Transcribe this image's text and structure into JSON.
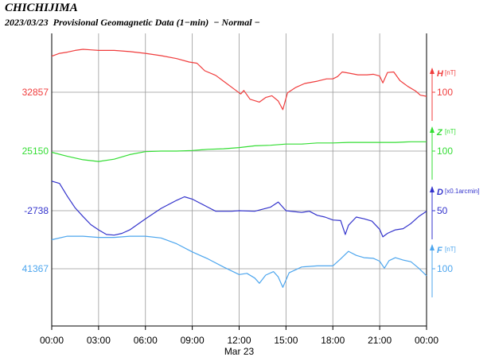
{
  "header": {
    "station": "CHICHIJIMA",
    "date": "2023/03/23",
    "description": "Provisional Geomagnetic Data (1−min)",
    "status": "− Normal −"
  },
  "chart_data": {
    "type": "line",
    "xlabel": "Mar 23",
    "x_ticks": [
      "00:00",
      "03:00",
      "06:00",
      "09:00",
      "12:00",
      "15:00",
      "18:00",
      "21:00",
      "00:00"
    ],
    "x_range_hours": [
      0,
      24
    ],
    "grid": true,
    "series": [
      {
        "name": "H",
        "unit": "[nT]",
        "color": "#f03c3c",
        "baseline_label": "32857",
        "scale_value": "100",
        "points": [
          [
            0,
            62
          ],
          [
            0.5,
            67
          ],
          [
            1,
            69
          ],
          [
            1.5,
            72
          ],
          [
            2,
            74
          ],
          [
            2.5,
            73
          ],
          [
            3,
            72
          ],
          [
            4,
            72
          ],
          [
            5,
            70
          ],
          [
            6,
            67
          ],
          [
            7,
            63
          ],
          [
            8,
            58
          ],
          [
            8.8,
            52
          ],
          [
            9.3,
            50
          ],
          [
            9.8,
            37
          ],
          [
            10.5,
            29
          ],
          [
            11,
            19
          ],
          [
            11.7,
            5
          ],
          [
            12.1,
            -3
          ],
          [
            12.3,
            3
          ],
          [
            12.7,
            -12
          ],
          [
            13.3,
            -17
          ],
          [
            13.7,
            -9
          ],
          [
            14.1,
            -6
          ],
          [
            14.5,
            -15
          ],
          [
            14.8,
            -30
          ],
          [
            15.1,
            -1
          ],
          [
            15.6,
            8
          ],
          [
            16.2,
            15
          ],
          [
            17,
            19
          ],
          [
            17.6,
            23
          ],
          [
            18,
            23
          ],
          [
            18.3,
            27
          ],
          [
            18.6,
            35
          ],
          [
            19,
            33
          ],
          [
            19.6,
            30
          ],
          [
            20.2,
            30
          ],
          [
            20.6,
            31
          ],
          [
            21,
            28
          ],
          [
            21.2,
            16
          ],
          [
            21.5,
            34
          ],
          [
            21.9,
            35
          ],
          [
            22.3,
            20
          ],
          [
            22.8,
            10
          ],
          [
            23.3,
            2
          ],
          [
            23.6,
            -5
          ],
          [
            24,
            -7
          ]
        ]
      },
      {
        "name": "Z",
        "unit": "[nT]",
        "color": "#33dd33",
        "baseline_label": "25150",
        "scale_value": "100",
        "points": [
          [
            0,
            -2
          ],
          [
            1,
            -9
          ],
          [
            2,
            -15
          ],
          [
            3,
            -18
          ],
          [
            4,
            -14
          ],
          [
            5,
            -6
          ],
          [
            6,
            -1
          ],
          [
            7,
            0
          ],
          [
            8,
            0
          ],
          [
            9,
            1
          ],
          [
            10,
            3
          ],
          [
            11,
            4
          ],
          [
            12,
            6
          ],
          [
            13,
            9
          ],
          [
            14,
            10
          ],
          [
            15,
            12
          ],
          [
            16,
            12
          ],
          [
            17,
            14
          ],
          [
            18,
            14
          ],
          [
            19,
            15
          ],
          [
            20,
            15
          ],
          [
            21,
            15
          ],
          [
            22,
            15
          ],
          [
            23,
            16
          ],
          [
            24,
            16
          ]
        ]
      },
      {
        "name": "D",
        "unit": "[x0.1arcmin]",
        "color": "#3333cc",
        "baseline_label": "-2738",
        "scale_value": "50",
        "points": [
          [
            0,
            51
          ],
          [
            0.5,
            47
          ],
          [
            1,
            25
          ],
          [
            1.5,
            5
          ],
          [
            2,
            -10
          ],
          [
            2.5,
            -24
          ],
          [
            3,
            -33
          ],
          [
            3.5,
            -41
          ],
          [
            4,
            -42
          ],
          [
            4.5,
            -39
          ],
          [
            5,
            -33
          ],
          [
            6,
            -14
          ],
          [
            7,
            4
          ],
          [
            8,
            18
          ],
          [
            8.5,
            24
          ],
          [
            9,
            20
          ],
          [
            9.5,
            13
          ],
          [
            10,
            6
          ],
          [
            10.5,
            -1
          ],
          [
            11,
            -1
          ],
          [
            11.5,
            -1
          ],
          [
            12,
            0
          ],
          [
            13,
            -1
          ],
          [
            14,
            6
          ],
          [
            14.5,
            15
          ],
          [
            15,
            0
          ],
          [
            16,
            -3
          ],
          [
            16.5,
            -1
          ],
          [
            17,
            -8
          ],
          [
            17.5,
            -11
          ],
          [
            18,
            -16
          ],
          [
            18.5,
            -17
          ],
          [
            18.8,
            -41
          ],
          [
            19,
            -25
          ],
          [
            19.5,
            -11
          ],
          [
            20,
            -14
          ],
          [
            20.5,
            -18
          ],
          [
            21,
            -32
          ],
          [
            21.2,
            -45
          ],
          [
            21.5,
            -39
          ],
          [
            22,
            -33
          ],
          [
            22.5,
            -31
          ],
          [
            23,
            -22
          ],
          [
            23.5,
            -10
          ],
          [
            24,
            -1
          ]
        ]
      },
      {
        "name": "F",
        "unit": "[nT]",
        "color": "#4da6ee",
        "baseline_label": "41367",
        "scale_value": "100",
        "points": [
          [
            0,
            50
          ],
          [
            1,
            56
          ],
          [
            2,
            56
          ],
          [
            3,
            54
          ],
          [
            4,
            54
          ],
          [
            5,
            56
          ],
          [
            6,
            56
          ],
          [
            7,
            53
          ],
          [
            8,
            43
          ],
          [
            9,
            29
          ],
          [
            10,
            17
          ],
          [
            11,
            3
          ],
          [
            12,
            -10
          ],
          [
            12.5,
            -8
          ],
          [
            13,
            -16
          ],
          [
            13.3,
            -25
          ],
          [
            13.7,
            -11
          ],
          [
            14.2,
            -5
          ],
          [
            14.5,
            -14
          ],
          [
            14.8,
            -32
          ],
          [
            15.2,
            -7
          ],
          [
            16,
            3
          ],
          [
            17,
            5
          ],
          [
            18,
            5
          ],
          [
            18.5,
            17
          ],
          [
            19,
            30
          ],
          [
            19.5,
            23
          ],
          [
            20,
            19
          ],
          [
            20.6,
            18
          ],
          [
            21,
            13
          ],
          [
            21.3,
            1
          ],
          [
            21.6,
            14
          ],
          [
            22,
            19
          ],
          [
            22.5,
            15
          ],
          [
            23,
            12
          ],
          [
            23.5,
            1
          ],
          [
            24,
            -12
          ]
        ]
      }
    ]
  }
}
